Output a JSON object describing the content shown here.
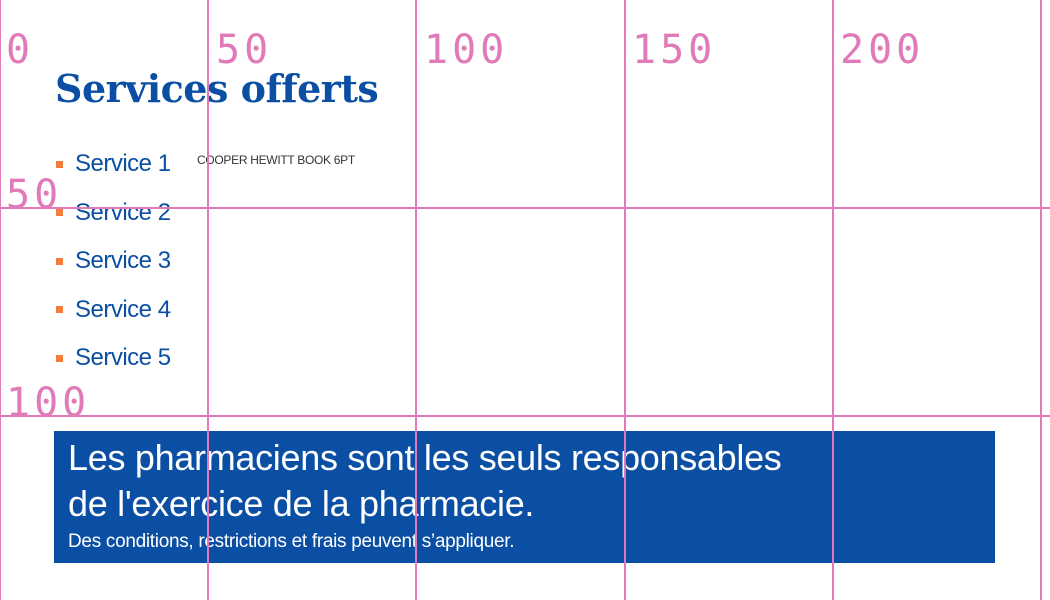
{
  "grid": {
    "color": "#e07ab8",
    "top_labels": [
      "0",
      "50",
      "100",
      "150",
      "200"
    ],
    "left_labels": [
      "50",
      "100"
    ]
  },
  "heading": "Services offerts",
  "services": [
    "Service 1",
    "Service 2",
    "Service 3",
    "Service 4",
    "Service 5"
  ],
  "font_note": "COOPER HEWITT BOOK 6PT",
  "banner": {
    "line1": "Les pharmaciens sont les seuls responsables",
    "line2": "de l'exercice de la pharmacie.",
    "disclaimer": "Des conditions, restrictions et frais peuvent s’appliquer."
  },
  "colors": {
    "brand_blue": "#0a4fa3",
    "bullet_orange": "#f47c3c"
  }
}
